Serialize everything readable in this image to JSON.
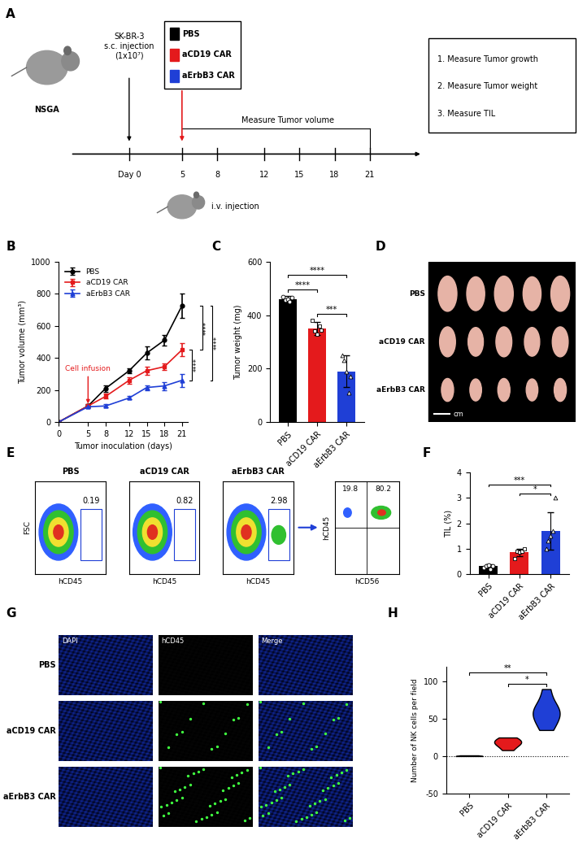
{
  "chart_data": [
    {
      "panel": "B",
      "type": "line",
      "x_label": "Tumor inoculation (days)",
      "y_label": "Tumor volume (mm³)",
      "x": [
        0,
        5,
        8,
        12,
        15,
        18,
        21
      ],
      "xlim": [
        0,
        22
      ],
      "xticks": [
        0,
        5,
        8,
        12,
        15,
        18,
        21
      ],
      "ylim": [
        0,
        1000
      ],
      "yticks": [
        0,
        200,
        400,
        600,
        800,
        1000
      ],
      "legend": "upper left",
      "series": [
        {
          "name": "PBS",
          "color": "#000000",
          "marker": "o",
          "values": [
            0,
            100,
            210,
            320,
            430,
            510,
            725
          ],
          "errors": [
            0,
            10,
            20,
            15,
            40,
            35,
            75
          ]
        },
        {
          "name": "aCD19 CAR",
          "color": "#e41a1c",
          "marker": "s",
          "values": [
            0,
            100,
            160,
            260,
            320,
            345,
            450
          ],
          "errors": [
            0,
            10,
            15,
            20,
            25,
            20,
            40
          ]
        },
        {
          "name": "aErbB3 CAR",
          "color": "#1f3fd6",
          "marker": "^",
          "values": [
            0,
            95,
            100,
            150,
            215,
            225,
            260
          ],
          "errors": [
            0,
            8,
            10,
            10,
            15,
            25,
            40
          ]
        }
      ],
      "annotations": [
        {
          "text": "Cell infusion",
          "x": 5,
          "y": 100,
          "color": "#e41a1c"
        }
      ],
      "significance": [
        {
          "from": "aCD19 CAR",
          "to": "aErbB3 CAR",
          "label": "****"
        },
        {
          "from": "PBS",
          "to": "aCD19 CAR",
          "label": "****"
        },
        {
          "from": "PBS",
          "to": "aErbB3 CAR",
          "label": "****"
        }
      ]
    },
    {
      "panel": "C",
      "type": "bar",
      "y_label": "Tumor weight (mg)",
      "categories": [
        "PBS",
        "aCD19 CAR",
        "aErbB3 CAR"
      ],
      "values": [
        460,
        350,
        190
      ],
      "errors": [
        12,
        25,
        60
      ],
      "points": [
        [
          470,
          455,
          460,
          450,
          465
        ],
        [
          380,
          340,
          330,
          360,
          345
        ],
        [
          250,
          230,
          190,
          110,
          170
        ]
      ],
      "colors": [
        "#000000",
        "#e41a1c",
        "#1f3fd6"
      ],
      "markers": [
        "o",
        "s",
        "^"
      ],
      "ylim": [
        0,
        600
      ],
      "yticks": [
        0,
        200,
        400,
        600
      ],
      "significance": [
        {
          "from": "aCD19 CAR",
          "to": "aErbB3 CAR",
          "label": "***"
        },
        {
          "from": "PBS",
          "to": "aCD19 CAR",
          "label": "****"
        },
        {
          "from": "PBS",
          "to": "aErbB3 CAR",
          "label": "****"
        }
      ]
    },
    {
      "panel": "F",
      "type": "bar",
      "y_label": "TIL (%)",
      "categories": [
        "PBS",
        "aCD19 CAR",
        "aErbB3 CAR"
      ],
      "values": [
        0.3,
        0.85,
        1.7
      ],
      "errors": [
        0.07,
        0.15,
        0.75
      ],
      "points": [
        [
          0.25,
          0.3,
          0.35,
          0.2,
          0.3
        ],
        [
          0.6,
          0.9,
          0.85,
          0.9,
          1.0
        ],
        [
          1.0,
          1.3,
          1.5,
          1.7,
          3.0
        ]
      ],
      "colors": [
        "#000000",
        "#e41a1c",
        "#1f3fd6"
      ],
      "markers": [
        "o",
        "s",
        "^"
      ],
      "ylim": [
        0,
        4
      ],
      "yticks": [
        0,
        1,
        2,
        3,
        4
      ],
      "significance": [
        {
          "from": "aCD19 CAR",
          "to": "aErbB3 CAR",
          "label": "*"
        },
        {
          "from": "PBS",
          "to": "aErbB3 CAR",
          "label": "***"
        }
      ]
    },
    {
      "panel": "H",
      "type": "violin",
      "y_label": "Number of NK cells per field",
      "categories": [
        "PBS",
        "aCD19 CAR",
        "aErbB3 CAR"
      ],
      "values": [
        [
          0,
          1,
          0,
          0,
          1
        ],
        [
          8,
          14,
          17,
          19,
          22,
          25
        ],
        [
          35,
          45,
          55,
          58,
          62,
          70,
          90
        ]
      ],
      "colors": [
        "#000000",
        "#e41a1c",
        "#1f3fd6"
      ],
      "reference_line": 0,
      "ylim": [
        -50,
        120
      ],
      "yticks": [
        -50,
        0,
        50,
        100
      ],
      "significance": [
        {
          "from": "aCD19 CAR",
          "to": "aErbB3 CAR",
          "label": "*"
        },
        {
          "from": "PBS",
          "to": "aErbB3 CAR",
          "label": "**"
        }
      ]
    }
  ],
  "diagram": {
    "schematic": {
      "panel": "A",
      "strain": "NSGA",
      "injection": [
        "SK-BR-3",
        "s.c. injection",
        "(1x10⁷)"
      ],
      "day0": "Day 0",
      "timeline_days": [
        5,
        8,
        12,
        15,
        18,
        21
      ],
      "measure_label": "Measure Tumor volume",
      "iv_label": "i.v. injection",
      "groups": [
        {
          "name": "PBS",
          "color": "#000000"
        },
        {
          "name": "aCD19 CAR",
          "color": "#e41a1c"
        },
        {
          "name": "aErbB3 CAR",
          "color": "#1f3fd6"
        }
      ],
      "readouts": [
        "1. Measure Tumor growth",
        "2. Measure Tumor weight",
        "3. Measure TIL"
      ]
    },
    "tumor_photo": {
      "panel": "D",
      "rows": [
        "PBS",
        "aCD19 CAR",
        "aErbB3 CAR"
      ],
      "scale_label": "cm"
    },
    "flow": {
      "panel": "E",
      "x_label": "hCD45",
      "y_label": "FSC",
      "plots": [
        {
          "title": "PBS",
          "gate_value": 0.19
        },
        {
          "title": "aCD19 CAR",
          "gate_value": 0.82
        },
        {
          "title": "aErbB3 CAR",
          "gate_value": 2.98
        }
      ],
      "subplot": {
        "x_label": "hCD56",
        "y_label": "hCD45",
        "quadrant_values": [
          19.8,
          80.2
        ]
      }
    },
    "imaging": {
      "panel": "G",
      "columns": [
        "DAPI",
        "hCD45",
        "Merge"
      ],
      "rows": [
        "PBS",
        "aCD19 CAR",
        "aErbB3 CAR"
      ]
    }
  }
}
